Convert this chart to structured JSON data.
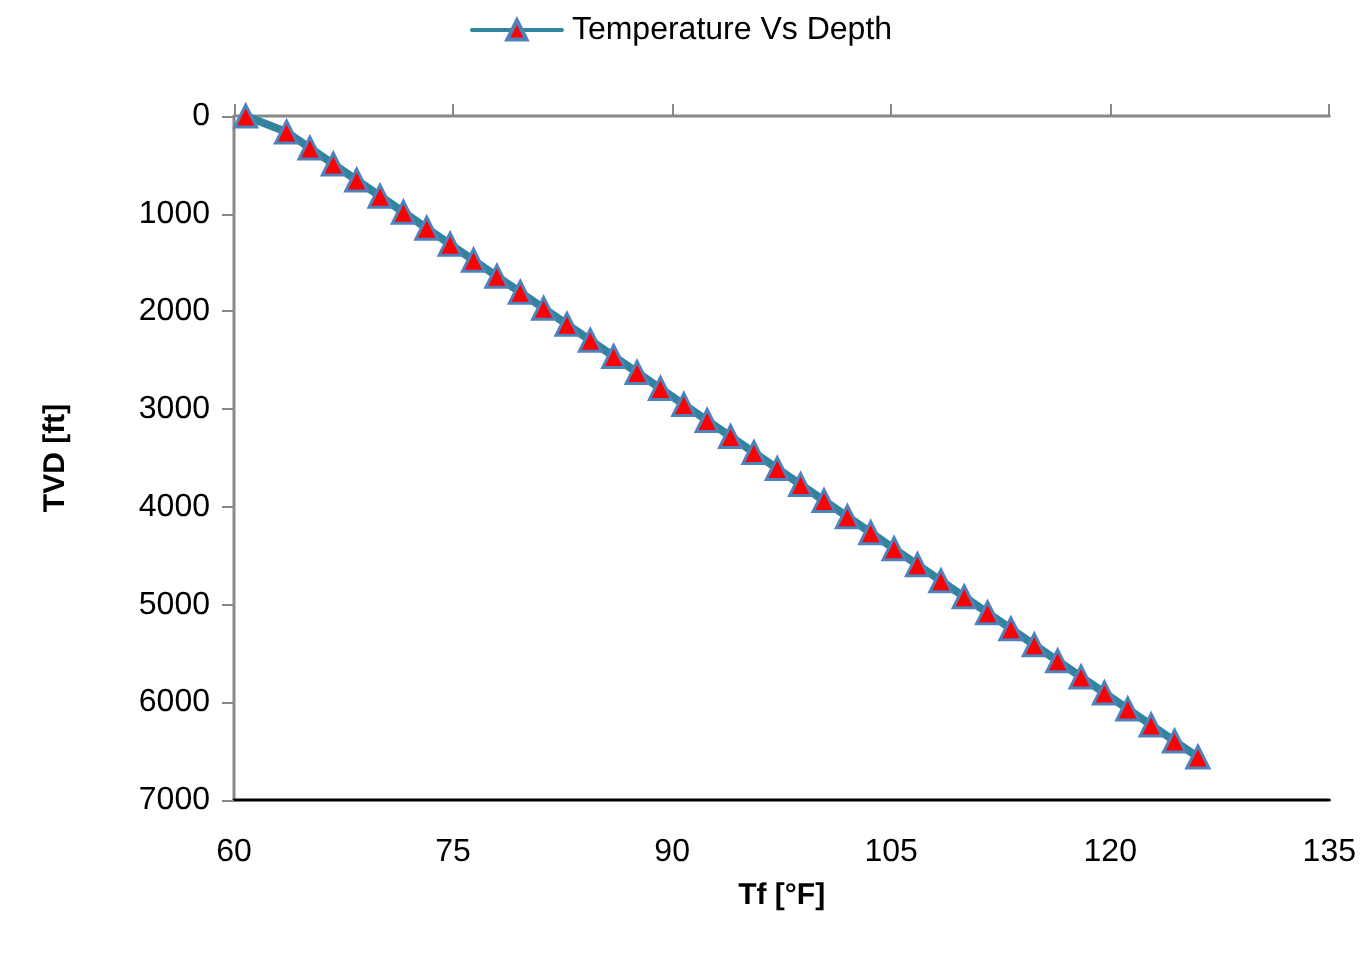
{
  "chart_data": {
    "type": "line",
    "xlabel": "Tf [°F]",
    "ylabel": "TVD [ft]",
    "x": [
      60.8,
      63.6,
      65.2,
      66.8,
      68.4,
      70.0,
      71.6,
      73.2,
      74.8,
      76.4,
      78.0,
      79.6,
      81.2,
      82.8,
      84.4,
      86.0,
      87.6,
      89.2,
      90.8,
      92.4,
      94.0,
      95.6,
      97.2,
      98.8,
      100.4,
      102.0,
      103.6,
      105.2,
      106.8,
      108.4,
      110.0,
      111.6,
      113.2,
      114.8,
      116.4,
      118.0,
      119.6,
      121.2,
      122.8,
      124.4,
      126.0
    ],
    "series": [
      {
        "name": "Temperature Vs Depth",
        "color": "#31849b",
        "values": [
          0,
          164,
          328,
          492,
          656,
          820,
          984,
          1148,
          1312,
          1476,
          1640,
          1804,
          1968,
          2132,
          2296,
          2460,
          2624,
          2788,
          2952,
          3116,
          3280,
          3444,
          3608,
          3772,
          3936,
          4100,
          4264,
          4428,
          4592,
          4756,
          4920,
          5084,
          5248,
          5412,
          5576,
          5740,
          5904,
          6068,
          6232,
          6396,
          6560
        ]
      }
    ],
    "xlim": [
      60,
      135
    ],
    "xticks": [
      60,
      75,
      90,
      105,
      120,
      135
    ],
    "ylim": [
      7000,
      0
    ],
    "yticks": [
      0,
      1000,
      2000,
      3000,
      4000,
      5000,
      6000,
      7000
    ],
    "grid": false,
    "legend": "top",
    "marker": "triangle",
    "line_style": "solid"
  }
}
